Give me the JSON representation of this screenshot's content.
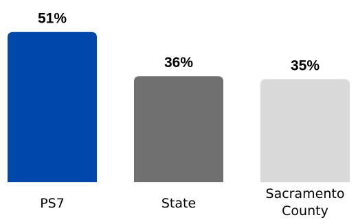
{
  "chart_data": {
    "type": "bar",
    "categories": [
      "PS7",
      "State",
      "Sacramento County"
    ],
    "category_lines": [
      [
        "PS7"
      ],
      [
        "State"
      ],
      [
        "Sacramento",
        "County"
      ]
    ],
    "values": [
      51,
      36,
      35
    ],
    "value_labels": [
      "51%",
      "36%",
      "35%"
    ],
    "bar_colors": [
      "#0047AB",
      "#707070",
      "#D9D9D9"
    ],
    "title": "",
    "xlabel": "",
    "ylabel": "",
    "grid": false,
    "legend": "none"
  }
}
